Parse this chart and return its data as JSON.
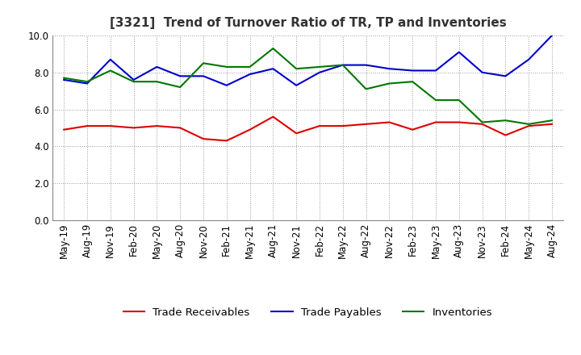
{
  "title": "[3321]  Trend of Turnover Ratio of TR, TP and Inventories",
  "labels": [
    "May-19",
    "Aug-19",
    "Nov-19",
    "Feb-20",
    "May-20",
    "Aug-20",
    "Nov-20",
    "Feb-21",
    "May-21",
    "Aug-21",
    "Nov-21",
    "Feb-22",
    "May-22",
    "Aug-22",
    "Nov-22",
    "Feb-23",
    "May-23",
    "Aug-23",
    "Nov-23",
    "Feb-24",
    "May-24",
    "Aug-24"
  ],
  "trade_receivables": [
    4.9,
    5.1,
    5.1,
    5.0,
    5.1,
    5.0,
    4.4,
    4.3,
    4.9,
    5.6,
    4.7,
    5.1,
    5.1,
    5.2,
    5.3,
    4.9,
    5.3,
    5.3,
    5.2,
    4.6,
    5.1,
    5.2
  ],
  "trade_payables": [
    7.6,
    7.4,
    8.7,
    7.6,
    8.3,
    7.8,
    7.8,
    7.3,
    7.9,
    8.2,
    7.3,
    8.0,
    8.4,
    8.4,
    8.2,
    8.1,
    8.1,
    9.1,
    8.0,
    7.8,
    8.7,
    10.0
  ],
  "inventories": [
    7.7,
    7.5,
    8.1,
    7.5,
    7.5,
    7.2,
    8.5,
    8.3,
    8.3,
    9.3,
    8.2,
    8.3,
    8.4,
    7.1,
    7.4,
    7.5,
    6.5,
    6.5,
    5.3,
    5.4,
    5.2,
    5.4
  ],
  "ylim": [
    0.0,
    10.0
  ],
  "yticks": [
    0.0,
    2.0,
    4.0,
    6.0,
    8.0,
    10.0
  ],
  "color_tr": "#dd0000",
  "color_tp": "#0000cc",
  "color_inv": "#007700",
  "legend_labels": [
    "Trade Receivables",
    "Trade Payables",
    "Inventories"
  ],
  "background_color": "#ffffff",
  "grid_color": "#999999",
  "title_fontsize": 11,
  "axis_fontsize": 8.5,
  "legend_fontsize": 9.5
}
